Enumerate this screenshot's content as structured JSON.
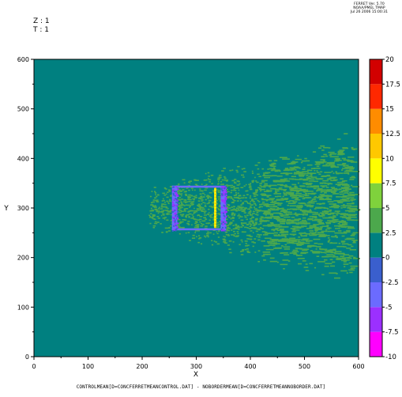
{
  "header": {
    "z_label": "Z : 1",
    "t_label": "T : 1",
    "ferret_lines": [
      "FERRET Ver. 5.70",
      "NOAA/PMEL TMAP",
      "Jul 26 2006 15:00:31"
    ]
  },
  "caption": "CONTROLMEAN[D=CONCFERRETMEANCONTROL.DAT] - NOBORDERMEAN[D=CONCFERRETMEANNOBORDER.DAT]",
  "chart_data": {
    "type": "heatmap",
    "title": "",
    "xlabel": "X",
    "ylabel": "Y",
    "xlim": [
      0,
      600
    ],
    "ylim": [
      0,
      600
    ],
    "x_ticks": [
      0,
      100,
      200,
      300,
      400,
      500,
      600
    ],
    "y_ticks": [
      0,
      100,
      200,
      300,
      400,
      500,
      600
    ],
    "background_value": 0,
    "colorbar": {
      "levels": [
        -10,
        -7.5,
        -5,
        -2.5,
        0,
        2.5,
        5,
        7.5,
        10,
        12.5,
        15,
        17.5,
        20
      ],
      "labels": [
        "20",
        "17.5",
        "15",
        "12.5",
        "10",
        "7.5",
        "5",
        "2.5",
        "0",
        "-2.5",
        "-5",
        "-7.5",
        "-10"
      ],
      "colors": [
        "#ff00ff",
        "#9b30ff",
        "#6b6bff",
        "#3a5fcd",
        "#008080",
        "#4ca84c",
        "#7fd23c",
        "#ffff00",
        "#ffc800",
        "#ff8c00",
        "#ff2800",
        "#d20000"
      ]
    },
    "features": [
      {
        "name": "positive plume",
        "value_range": [
          0,
          2.5
        ],
        "x": [
          210,
          590
        ],
        "y": [
          155,
          485
        ]
      },
      {
        "name": "negative square outline",
        "value_range": [
          -7.5,
          -2.5
        ],
        "x": [
          255,
          355
        ],
        "y": [
          255,
          345
        ]
      },
      {
        "name": "positive vertical bar",
        "value_range": [
          7.5,
          12.5
        ],
        "x": [
          333,
          337
        ],
        "y": [
          260,
          340
        ]
      }
    ]
  }
}
